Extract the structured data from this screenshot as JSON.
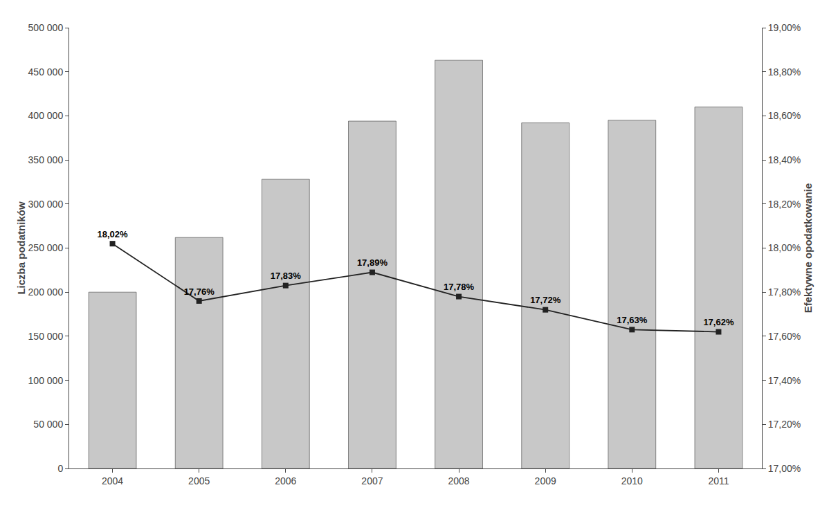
{
  "chart_data": {
    "type": "bar",
    "categories": [
      "2004",
      "2005",
      "2006",
      "2007",
      "2008",
      "2009",
      "2010",
      "2011"
    ],
    "series": [
      {
        "type": "bar",
        "color": "#c8c8c8",
        "values": [
          200000,
          262000,
          328000,
          394000,
          463000,
          392000,
          395000,
          410000
        ]
      },
      {
        "type": "line",
        "axis": "y2",
        "color": "#222222",
        "marker": "square",
        "line_style": "solid",
        "data_labels": true,
        "values": [
          18.02,
          17.76,
          17.83,
          17.89,
          17.78,
          17.72,
          17.63,
          17.62
        ],
        "value_labels": [
          "18,02%",
          "17,76%",
          "17,83%",
          "17,89%",
          "17,78%",
          "17,72%",
          "17,63%",
          "17,62%"
        ]
      }
    ],
    "ylabel": "Liczba podatników",
    "y2label": "Efektywne opodatkowanie",
    "ylim": [
      0,
      500000
    ],
    "yticks": [
      0,
      {
        "value": 50000,
        "label": "50 000"
      },
      {
        "value": 100000,
        "label": "100 000"
      },
      {
        "value": 150000,
        "label": "150 000"
      },
      {
        "value": 200000,
        "label": "200 000"
      },
      {
        "value": 250000,
        "label": "250 000"
      },
      {
        "value": 300000,
        "label": "300 000"
      },
      {
        "value": 350000,
        "label": "350 000"
      },
      {
        "value": 400000,
        "label": "400 000"
      },
      {
        "value": 450000,
        "label": "450 000"
      },
      {
        "value": 500000,
        "label": "500 000"
      }
    ],
    "y2lim": [
      17.0,
      19.0
    ],
    "y2ticks": [
      {
        "value": 17.0,
        "label": "17,00%"
      },
      {
        "value": 17.2,
        "label": "17,20%"
      },
      {
        "value": 17.4,
        "label": "17,40%"
      },
      {
        "value": 17.6,
        "label": "17,60%"
      },
      {
        "value": 17.8,
        "label": "17,80%"
      },
      {
        "value": 18.0,
        "label": "18,00%"
      },
      {
        "value": 18.2,
        "label": "18,20%"
      },
      {
        "value": 18.4,
        "label": "18,40%"
      },
      {
        "value": 18.6,
        "label": "18,60%"
      },
      {
        "value": 18.8,
        "label": "18,80%"
      },
      {
        "value": 19.0,
        "label": "19,00%"
      }
    ],
    "grid": false
  }
}
